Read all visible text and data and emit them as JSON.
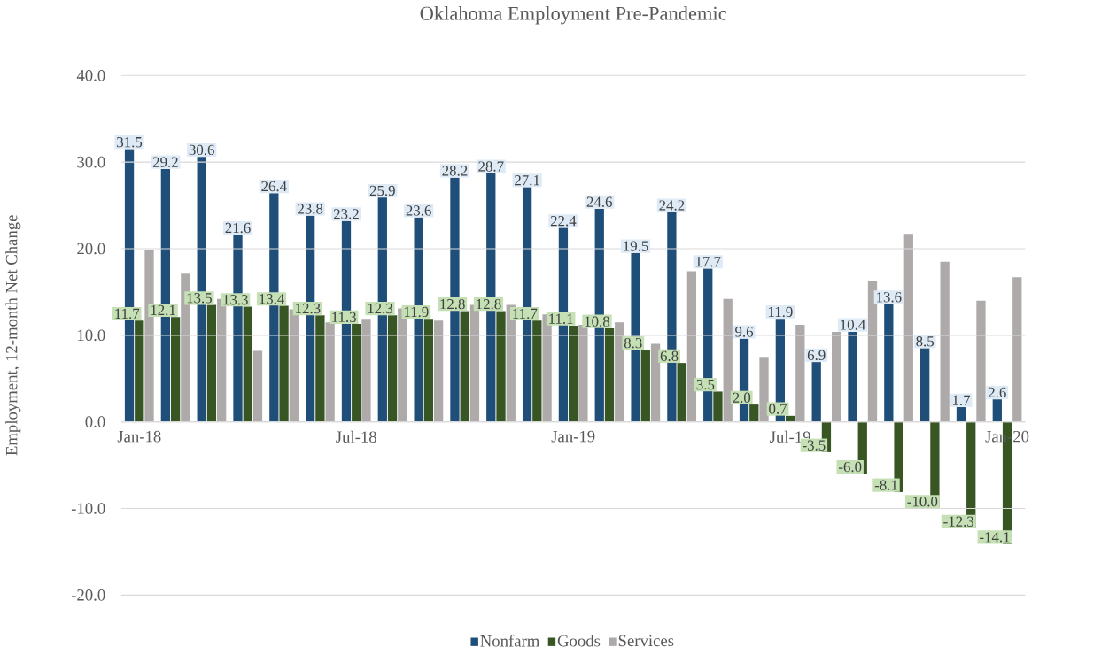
{
  "chart_data": {
    "type": "bar",
    "title": "Oklahoma Employment Pre-Pandemic",
    "ylabel": "Employment, 12-month Net Change",
    "categories": [
      "Jan-18",
      null,
      null,
      null,
      null,
      null,
      "Jul-18",
      null,
      null,
      null,
      null,
      null,
      "Jan-19",
      null,
      null,
      null,
      null,
      null,
      "Jul-19",
      null,
      null,
      null,
      null,
      null,
      "Jan-20"
    ],
    "series": [
      {
        "name": "Nonfarm",
        "color": "#1f4e79",
        "values": [
          31.5,
          29.2,
          30.6,
          21.6,
          26.4,
          23.8,
          23.2,
          25.9,
          23.6,
          28.2,
          28.7,
          27.1,
          22.4,
          24.6,
          19.5,
          24.2,
          17.7,
          9.6,
          11.9,
          6.9,
          10.4,
          13.6,
          8.5,
          1.7,
          2.6
        ],
        "value_labels": [
          "31.5",
          "29.2",
          "30.6",
          "21.6",
          "26.4",
          "23.8",
          "23.2",
          "25.9",
          "23.6",
          "28.2",
          "28.7",
          "27.1",
          "22.4",
          "24.6",
          "19.5",
          "24.2",
          "17.7",
          "9.6",
          "11.9",
          "6.9",
          "10.4",
          "13.6",
          "8.5",
          "1.7",
          "2.6"
        ]
      },
      {
        "name": "Goods",
        "color": "#375623",
        "values": [
          11.7,
          12.1,
          13.5,
          13.3,
          13.4,
          12.3,
          11.3,
          12.3,
          11.9,
          12.8,
          12.8,
          11.7,
          11.1,
          10.8,
          8.3,
          6.8,
          3.5,
          2.0,
          0.7,
          -3.5,
          -6.0,
          -8.1,
          -10.0,
          -12.3,
          -14.1
        ],
        "value_labels": [
          "11.7",
          "12.1",
          "13.5",
          "13.3",
          "13.4",
          "12.3",
          "11.3",
          "12.3",
          "11.9",
          "12.8",
          "12.8",
          "11.7",
          "11.1",
          "10.8",
          "8.3",
          "6.8",
          "3.5",
          "2.0",
          "0.7",
          "-3.5",
          "-6.0",
          "-8.1",
          "-10.0",
          "-12.3",
          "-14.1"
        ]
      },
      {
        "name": "Services",
        "color": "#aeaaaa",
        "values": [
          19.8,
          17.1,
          14.2,
          8.2,
          13.0,
          11.5,
          11.9,
          13.1,
          11.7,
          13.5,
          13.5,
          12.4,
          11.2,
          11.5,
          9.0,
          17.4,
          14.2,
          7.5,
          11.2,
          10.4,
          16.3,
          21.7,
          18.5,
          14.0,
          16.7
        ]
      }
    ],
    "ylim": [
      -20,
      40
    ],
    "yticks": [
      {
        "value": -20,
        "label": "-20.0"
      },
      {
        "value": -10,
        "label": "-10.0"
      },
      {
        "value": 0,
        "label": "0.0"
      },
      {
        "value": 10,
        "label": "10.0"
      },
      {
        "value": 20,
        "label": "20.0"
      },
      {
        "value": 30,
        "label": "30.0"
      },
      {
        "value": 40,
        "label": "40.0"
      }
    ],
    "grid": "y",
    "legend": "bottom"
  }
}
